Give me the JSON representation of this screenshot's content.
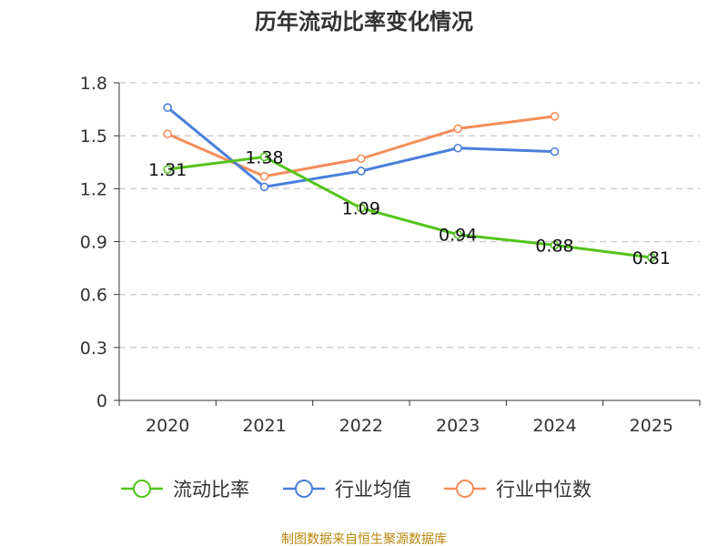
{
  "chart_data": {
    "type": "line",
    "title": "历年流动比率变化情况",
    "categories": [
      "2020",
      "2021",
      "2022",
      "2023",
      "2024",
      "2025"
    ],
    "yticks": [
      "0",
      "0.3",
      "0.6",
      "0.9",
      "1.2",
      "1.5",
      "1.8"
    ],
    "ylim": [
      0,
      1.8
    ],
    "series": [
      {
        "name": "流动比率",
        "color": "#52c41a",
        "values": [
          1.31,
          1.38,
          1.09,
          0.94,
          0.88,
          0.81
        ],
        "labels": [
          "1.31",
          "1.38",
          "1.09",
          "0.94",
          "0.88",
          "0.81"
        ]
      },
      {
        "name": "行业均值",
        "color": "#4a7fdb",
        "values": [
          1.66,
          1.21,
          1.3,
          1.43,
          1.41,
          null
        ]
      },
      {
        "name": "行业中位数",
        "color": "#f58e5a",
        "values": [
          1.51,
          1.27,
          1.37,
          1.54,
          1.61,
          null
        ]
      }
    ],
    "legend_position": "bottom",
    "grid": true,
    "source": "制图数据来自恒生聚源数据库"
  }
}
